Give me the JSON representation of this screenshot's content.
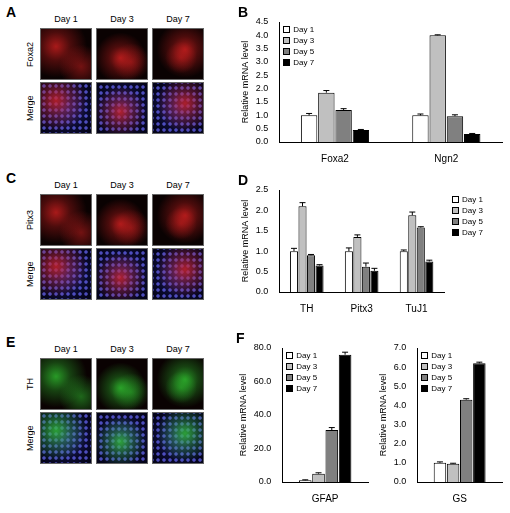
{
  "image_panels": [
    {
      "letter": "A",
      "columns": [
        "Day 1",
        "Day 3",
        "Day 7"
      ],
      "rows": [
        "Foxa2",
        "Merge"
      ],
      "color": "#d02020"
    },
    {
      "letter": "C",
      "columns": [
        "Day 1",
        "Day 3",
        "Day 7"
      ],
      "rows": [
        "Pitx3",
        "Merge"
      ],
      "color": "#d02020"
    },
    {
      "letter": "E",
      "columns": [
        "Day 1",
        "Day 3",
        "Day 7"
      ],
      "rows": [
        "TH",
        "Merge"
      ],
      "color": "#30c030"
    }
  ],
  "chart_data": [
    {
      "type": "bar",
      "title": "B",
      "y_label": "Relative mRNA level",
      "categories": [
        "Foxa2",
        "Ngn2"
      ],
      "series": [
        {
          "name": "Day 1",
          "color": "#ffffff",
          "values": [
            1.0,
            1.0
          ],
          "errors": [
            0.07,
            0.05
          ]
        },
        {
          "name": "Day 3",
          "color": "#c0c0c0",
          "values": [
            1.85,
            4.0
          ],
          "errors": [
            0.08,
            0.02
          ]
        },
        {
          "name": "Day 5",
          "color": "#808080",
          "values": [
            1.2,
            0.97
          ],
          "errors": [
            0.05,
            0.05
          ]
        },
        {
          "name": "Day 7",
          "color": "#000000",
          "values": [
            0.45,
            0.3
          ],
          "errors": [
            0.02,
            0.02
          ]
        }
      ],
      "ylim": [
        0,
        4.5
      ],
      "yticks": [
        {
          "value": 0,
          "label": "0.0"
        },
        0.5,
        {
          "value": 1,
          "label": "1.0"
        },
        1.5,
        {
          "value": 2,
          "label": "2.0"
        },
        2.5,
        {
          "value": 3,
          "label": "3.0"
        },
        3.5,
        {
          "value": 4,
          "label": "4.0"
        },
        4.5
      ],
      "grid": false,
      "legend": "top-left"
    },
    {
      "type": "bar",
      "title": "D",
      "y_label": "Relative mRNA level",
      "categories": [
        "TH",
        "Pitx3",
        "TuJ1"
      ],
      "series": [
        {
          "name": "Day 1",
          "color": "#ffffff",
          "values": [
            1.0,
            1.0,
            1.0
          ],
          "errors": [
            0.07,
            0.08,
            0.03
          ]
        },
        {
          "name": "Day 3",
          "color": "#c0c0c0",
          "values": [
            2.1,
            1.35,
            1.88
          ],
          "errors": [
            0.09,
            0.05,
            0.08
          ]
        },
        {
          "name": "Day 5",
          "color": "#808080",
          "values": [
            0.9,
            0.62,
            1.58
          ],
          "errors": [
            0.02,
            0.09,
            0.02
          ]
        },
        {
          "name": "Day 7",
          "color": "#000000",
          "values": [
            0.65,
            0.52,
            0.75
          ],
          "errors": [
            0.02,
            0.06,
            0.03
          ]
        }
      ],
      "ylim": [
        0,
        2.5
      ],
      "yticks": [
        {
          "value": 0,
          "label": "0.0"
        },
        0.5,
        {
          "value": 1,
          "label": "1.0"
        },
        1.5,
        {
          "value": 2,
          "label": "2.0"
        },
        2.5
      ],
      "grid": false,
      "legend": "right"
    },
    {
      "type": "bar",
      "title": "F",
      "y_label": "Relative mRNA level",
      "categories": [
        "GFAP"
      ],
      "series": [
        {
          "name": "Day 1",
          "color": "#ffffff",
          "values": [
            1.0
          ],
          "errors": [
            0.3
          ]
        },
        {
          "name": "Day 3",
          "color": "#c0c0c0",
          "values": [
            5.0
          ],
          "errors": [
            0.5
          ]
        },
        {
          "name": "Day 5",
          "color": "#808080",
          "values": [
            31.0
          ],
          "errors": [
            1.5
          ]
        },
        {
          "name": "Day 7",
          "color": "#000000",
          "values": [
            76.0
          ],
          "errors": [
            1.5
          ]
        }
      ],
      "ylim": [
        0,
        80
      ],
      "yticks": [
        {
          "value": 0,
          "label": "0.0"
        },
        {
          "value": 20,
          "label": "20.0"
        },
        {
          "value": 40,
          "label": "40.0"
        },
        {
          "value": 60,
          "label": "60.0"
        },
        {
          "value": 80,
          "label": "80.0"
        }
      ],
      "grid": false,
      "legend": "top-left"
    },
    {
      "type": "bar",
      "y_label": "Relative mRNA level",
      "categories": [
        "GS"
      ],
      "series": [
        {
          "name": "Day 1",
          "color": "#ffffff",
          "values": [
            1.0
          ],
          "errors": [
            0.05
          ]
        },
        {
          "name": "Day 3",
          "color": "#c0c0c0",
          "values": [
            0.95
          ],
          "errors": [
            0.03
          ]
        },
        {
          "name": "Day 5",
          "color": "#808080",
          "values": [
            4.3
          ],
          "errors": [
            0.05
          ]
        },
        {
          "name": "Day 7",
          "color": "#000000",
          "values": [
            6.2
          ],
          "errors": [
            0.06
          ]
        }
      ],
      "ylim": [
        0,
        7
      ],
      "yticks": [
        {
          "value": 0,
          "label": "0.0"
        },
        {
          "value": 1,
          "label": "1.0"
        },
        {
          "value": 2,
          "label": "2.0"
        },
        {
          "value": 3,
          "label": "3.0"
        },
        {
          "value": 4,
          "label": "4.0"
        },
        {
          "value": 5,
          "label": "5.0"
        },
        {
          "value": 6,
          "label": "6.0"
        },
        {
          "value": 7,
          "label": "7.0"
        }
      ],
      "grid": false,
      "legend": "top-left"
    }
  ]
}
